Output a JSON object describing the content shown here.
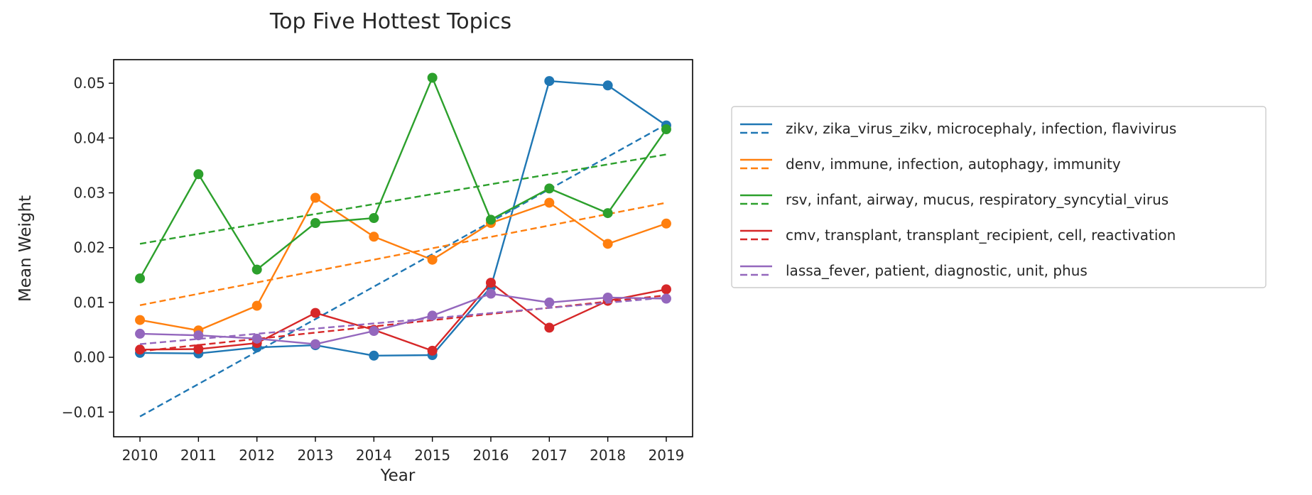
{
  "chart_data": {
    "type": "line",
    "title": "Top Five Hottest Topics",
    "xlabel": "Year",
    "ylabel": "Mean Weight",
    "x": [
      2010,
      2011,
      2012,
      2013,
      2014,
      2015,
      2016,
      2017,
      2018,
      2019
    ],
    "xticks": [
      "2010",
      "2011",
      "2012",
      "2013",
      "2014",
      "2015",
      "2016",
      "2017",
      "2018",
      "2019"
    ],
    "yticks": [
      "−0.01",
      "0.00",
      "0.01",
      "0.02",
      "0.03",
      "0.04",
      "0.05"
    ],
    "ytick_values": [
      -0.01,
      0.0,
      0.01,
      0.02,
      0.03,
      0.04,
      0.05
    ],
    "ylim": [
      -0.0145,
      0.0543
    ],
    "xlim": [
      2009.55,
      2019.45
    ],
    "grid": false,
    "legend_position": "right, outside plot",
    "series": [
      {
        "name": "zikv, zika_virus_zikv, microcephaly, infection, flavivirus",
        "color": "#1f77b4",
        "values": [
          0.0008,
          0.0007,
          0.0018,
          0.0022,
          0.0003,
          0.0004,
          0.0128,
          0.0504,
          0.0496,
          0.0423
        ],
        "trend": [
          -0.0108,
          0.0425
        ]
      },
      {
        "name": "denv, immune, infection, autophagy, immunity",
        "color": "#ff7f0e",
        "values": [
          0.0068,
          0.0049,
          0.0094,
          0.0291,
          0.022,
          0.0178,
          0.0245,
          0.0282,
          0.0207,
          0.0244
        ],
        "trend": [
          0.0095,
          0.0282
        ]
      },
      {
        "name": "rsv, infant, airway, mucus, respiratory_syncytial_virus",
        "color": "#2ca02c",
        "values": [
          0.0144,
          0.0334,
          0.016,
          0.0245,
          0.0254,
          0.051,
          0.0251,
          0.0308,
          0.0263,
          0.0416
        ],
        "trend": [
          0.0207,
          0.037
        ]
      },
      {
        "name": "cmv, transplant, transplant_recipient, cell, reactivation",
        "color": "#d62728",
        "values": [
          0.0014,
          0.0015,
          0.0026,
          0.0081,
          0.005,
          0.0012,
          0.0136,
          0.0054,
          0.0103,
          0.0124
        ],
        "trend": [
          0.0011,
          0.0113
        ]
      },
      {
        "name": "lassa_fever, patient, diagnostic, unit, phus",
        "color": "#9467bd",
        "values": [
          0.0043,
          0.004,
          0.0034,
          0.0024,
          0.0048,
          0.0076,
          0.0116,
          0.01,
          0.0109,
          0.0107
        ],
        "trend": [
          0.0024,
          0.0109
        ]
      }
    ]
  }
}
